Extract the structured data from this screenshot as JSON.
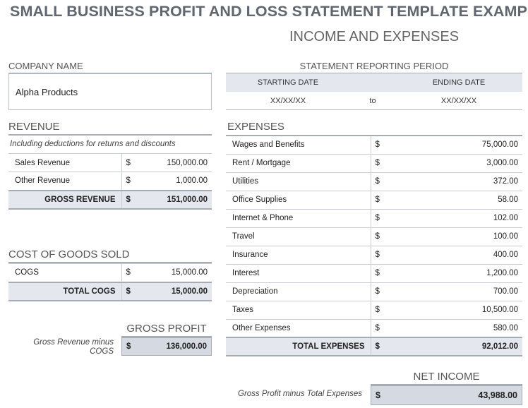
{
  "title": "SMALL BUSINESS PROFIT AND LOSS STATEMENT TEMPLATE EXAMPLE",
  "subtitle": "INCOME AND EXPENSES",
  "company": {
    "label": "COMPANY NAME",
    "value": "Alpha Products"
  },
  "period": {
    "label": "STATEMENT REPORTING PERIOD",
    "start_label": "STARTING DATE",
    "end_label": "ENDING DATE",
    "start_value": "XX/XX/XX",
    "to": "to",
    "end_value": "XX/XX/XX"
  },
  "revenue": {
    "heading": "REVENUE",
    "note": "Including deductions for returns and discounts",
    "rows": [
      {
        "label": "Sales Revenue",
        "currency": "$",
        "amount": "150,000.00"
      },
      {
        "label": "Other Revenue",
        "currency": "$",
        "amount": "1,000.00"
      }
    ],
    "total": {
      "label": "GROSS REVENUE",
      "currency": "$",
      "amount": "151,000.00"
    }
  },
  "cogs": {
    "heading": "COST OF GOODS SOLD",
    "rows": [
      {
        "label": "COGS",
        "currency": "$",
        "amount": "15,000.00"
      }
    ],
    "total": {
      "label": "TOTAL COGS",
      "currency": "$",
      "amount": "15,000.00"
    }
  },
  "gross_profit": {
    "heading": "GROSS PROFIT",
    "note_line1": "Gross Revenue minus",
    "note_line2": "COGS",
    "currency": "$",
    "amount": "136,000.00"
  },
  "expenses": {
    "heading": "EXPENSES",
    "rows": [
      {
        "label": "Wages and Benefits",
        "currency": "$",
        "amount": "75,000.00"
      },
      {
        "label": "Rent / Mortgage",
        "currency": "$",
        "amount": "3,000.00"
      },
      {
        "label": "Utilities",
        "currency": "$",
        "amount": "372.00"
      },
      {
        "label": "Office Supplies",
        "currency": "$",
        "amount": "58.00"
      },
      {
        "label": "Internet & Phone",
        "currency": "$",
        "amount": "102.00"
      },
      {
        "label": "Travel",
        "currency": "$",
        "amount": "100.00"
      },
      {
        "label": "Insurance",
        "currency": "$",
        "amount": "400.00"
      },
      {
        "label": "Interest",
        "currency": "$",
        "amount": "1,200.00"
      },
      {
        "label": "Depreciation",
        "currency": "$",
        "amount": "700.00"
      },
      {
        "label": "Taxes",
        "currency": "$",
        "amount": "10,500.00"
      },
      {
        "label": "Other Expenses",
        "currency": "$",
        "amount": "580.00"
      }
    ],
    "total": {
      "label": "TOTAL EXPENSES",
      "currency": "$",
      "amount": "92,012.00"
    }
  },
  "net_income": {
    "heading": "NET INCOME",
    "note": "Gross Profit minus Total Expenses",
    "currency": "$",
    "amount": "43,988.00"
  }
}
